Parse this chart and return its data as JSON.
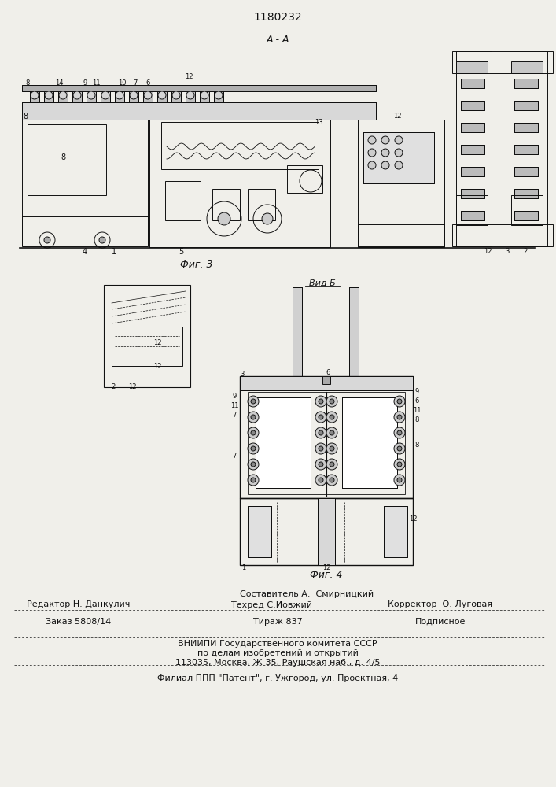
{
  "patent_number": "1180232",
  "fig3_label": "Фиг. 3",
  "fig4_label": "Фиг. 4",
  "section_label": "A - A",
  "view_label": "Вид Б",
  "footer": {
    "sostavitel": "Составитель А.  Смирницкий",
    "redaktor": "Редактор Н. Данкулич",
    "tehred": "Техред С.Йовжий",
    "korrektor": "Корректор  О. Луговая",
    "zakaz": "Заказ 5808/14",
    "tirazh": "Тираж 837",
    "podpisnoe": "Подписное",
    "vniipI": "ВНИИПИ Государственного комитета СССР",
    "po_delam": "по делам изобретений и открытий",
    "address": "113035, Москва, Ж-35, Раушская наб., д. 4/5",
    "filial": "Филиал ППП \"Патент\", г. Ужгород, ул. Проектная, 4"
  },
  "bg_color": "#f0efea"
}
